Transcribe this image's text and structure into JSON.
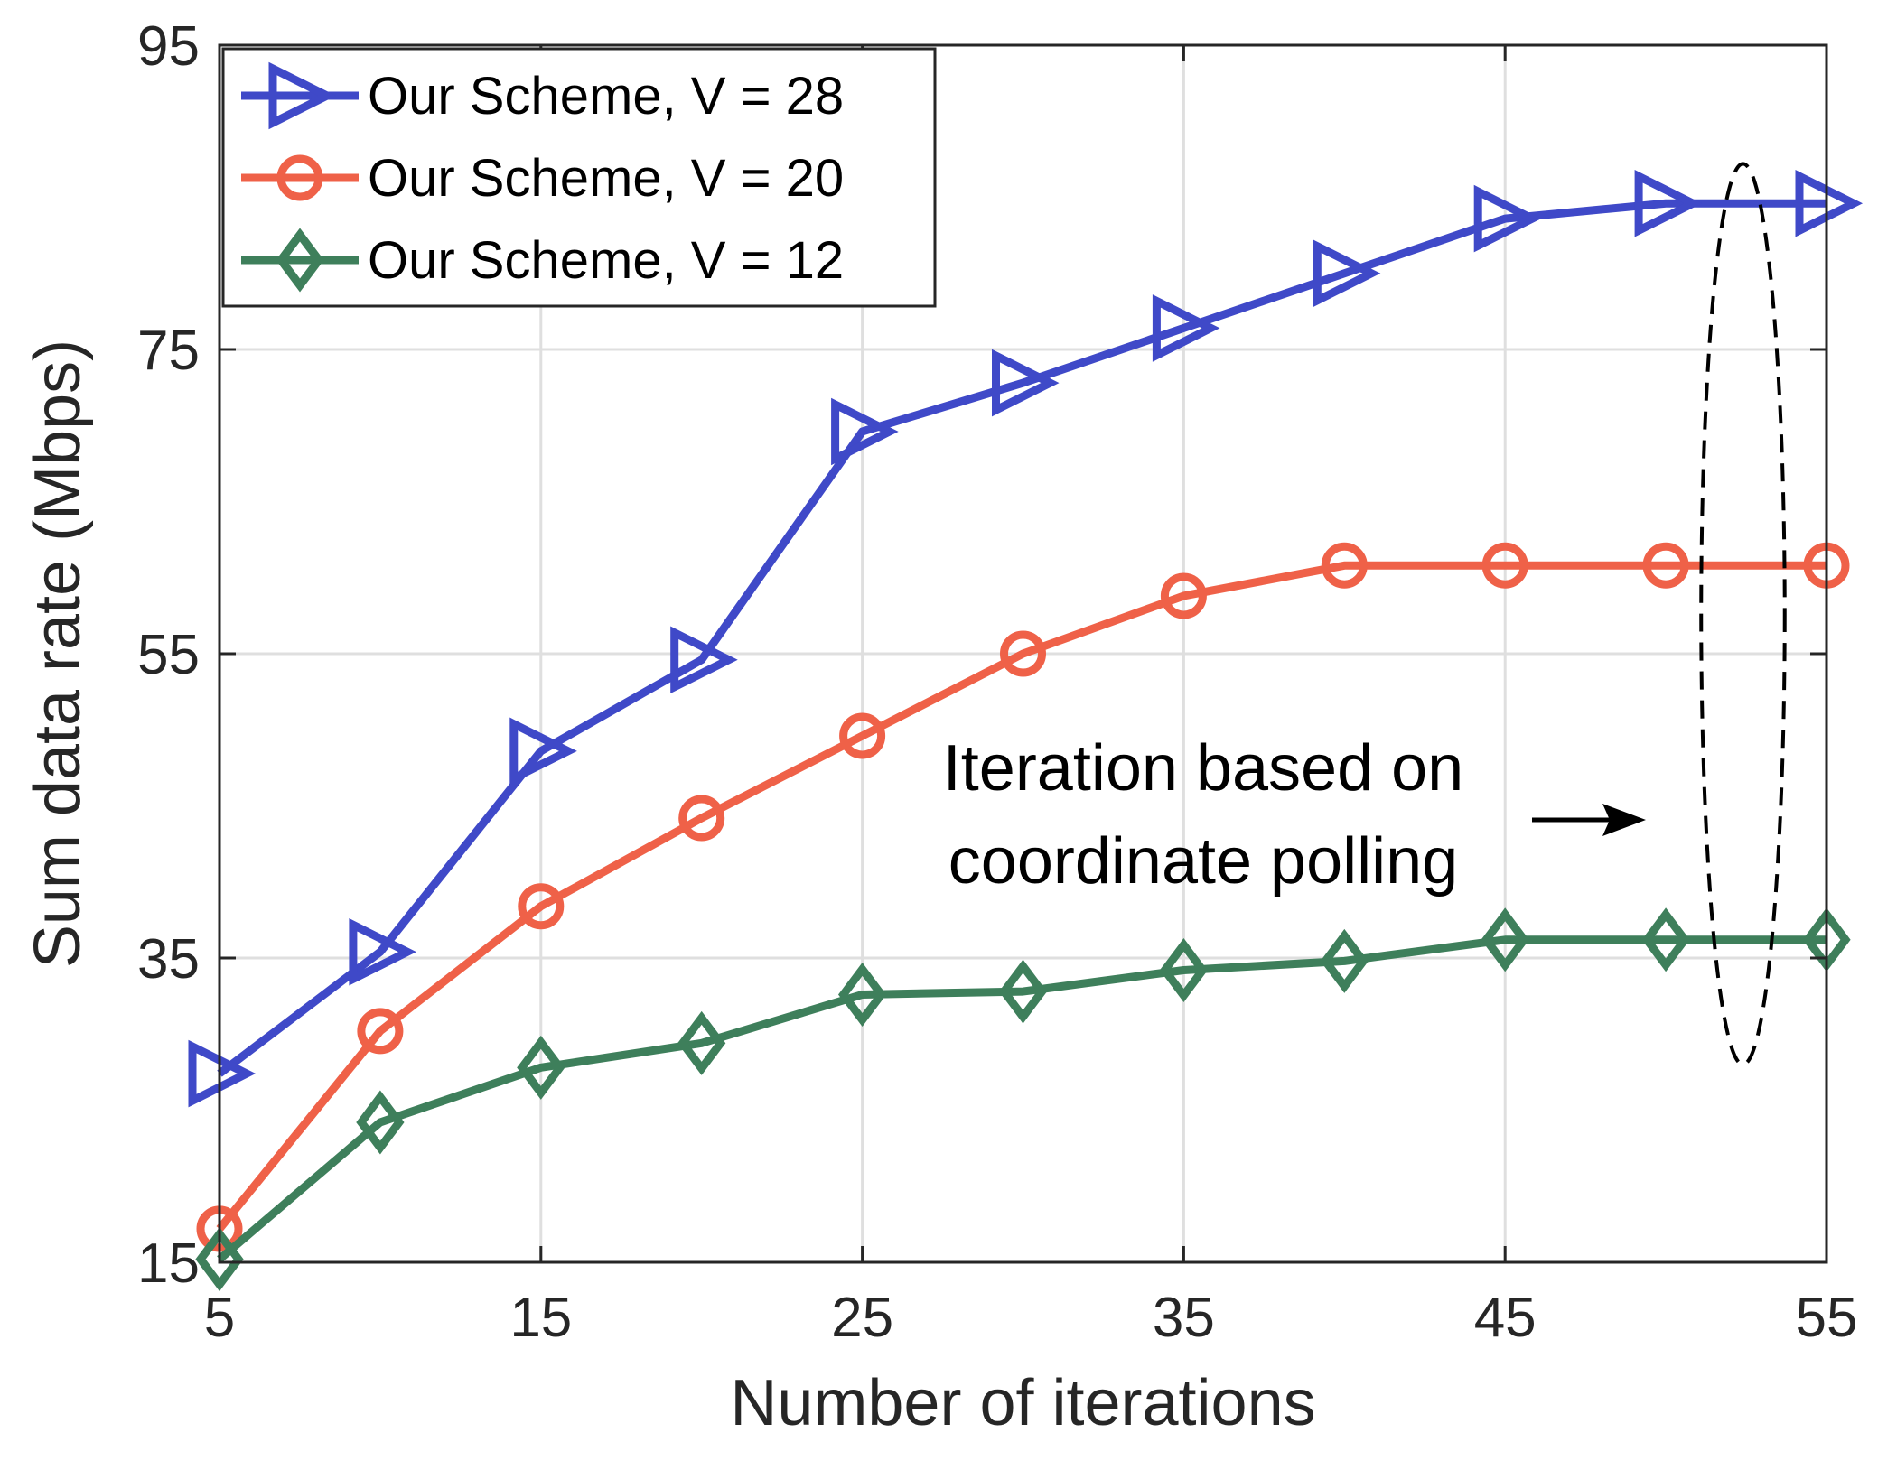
{
  "chart_data": {
    "type": "line",
    "title": "",
    "xlabel": "Number of iterations",
    "ylabel": "Sum data rate (Mbps)",
    "xlim": [
      5,
      55
    ],
    "ylim": [
      15,
      95
    ],
    "xticks": [
      "5",
      "15",
      "25",
      "35",
      "45",
      "55"
    ],
    "yticks": [
      "15",
      "35",
      "55",
      "75",
      "95"
    ],
    "grid": true,
    "legend_position": "top-left",
    "x": [
      5,
      10,
      15,
      20,
      25,
      30,
      35,
      40,
      45,
      50,
      55
    ],
    "series": [
      {
        "name": "Our Scheme, V = 28",
        "marker": "triangle-right",
        "color": "#3f49c8",
        "values": [
          27.4,
          35.4,
          48.6,
          54.6,
          69.6,
          72.8,
          76.4,
          80.0,
          83.6,
          84.6,
          84.6
        ]
      },
      {
        "name": "Our Scheme, V = 20",
        "marker": "circle",
        "color": "#ef6148",
        "values": [
          17.2,
          30.2,
          38.4,
          44.2,
          49.6,
          55.0,
          58.8,
          60.8,
          60.8,
          60.8,
          60.8
        ]
      },
      {
        "name": "Our Scheme, V = 12",
        "marker": "diamond",
        "color": "#3e7f5b",
        "values": [
          15.2,
          24.2,
          27.8,
          29.4,
          32.6,
          32.8,
          34.2,
          34.8,
          36.2,
          36.2,
          36.2
        ]
      }
    ],
    "annotation": {
      "lines": [
        "Iteration based on",
        "coordinate polling"
      ],
      "ellipse_center": [
        52.4,
        57.6
      ],
      "ellipse_radius": [
        1.3,
        29.6
      ]
    }
  }
}
